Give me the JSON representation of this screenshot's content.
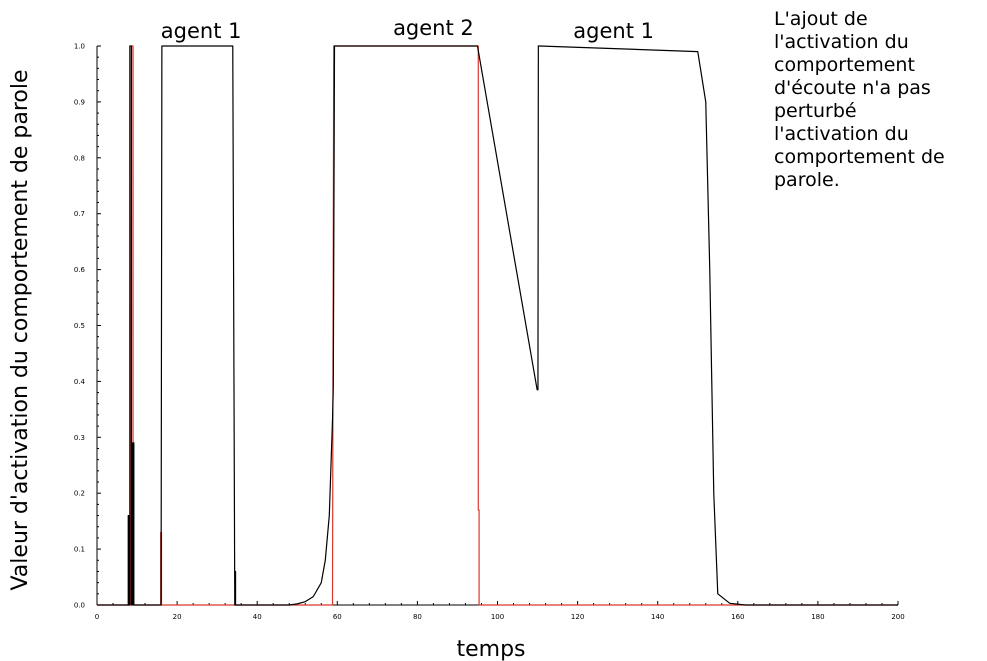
{
  "chart_data": {
    "type": "line",
    "title": "",
    "xlabel": "temps",
    "ylabel": "Valeur d'activation du comportement de parole",
    "xlim": [
      0,
      200
    ],
    "ylim": [
      0,
      1
    ],
    "x_ticks": [
      "0",
      "20",
      "40",
      "60",
      "80",
      "100",
      "120",
      "140",
      "160",
      "180",
      "200"
    ],
    "y_ticks": [
      "0.0",
      "0.1",
      "0.2",
      "0.3",
      "0.4",
      "0.5",
      "0.6",
      "0.7",
      "0.8",
      "0.9",
      "1.0"
    ],
    "grid": false,
    "legend": "none",
    "segment_labels": [
      {
        "text": "agent 1",
        "x": 26
      },
      {
        "text": "agent 2",
        "x": 84
      },
      {
        "text": "agent 1",
        "x": 129
      }
    ],
    "annotation_lines": [
      "L'ajout de",
      "l'activation du",
      "comportement",
      "d'écoute n'a pas",
      "perturbé",
      "l'activation du",
      "comportement de",
      "parole."
    ],
    "series": [
      {
        "color": "#000000",
        "x": [
          0,
          7.8,
          7.8,
          8.0,
          8.0,
          8.2,
          8.2,
          8.6,
          8.6,
          8.9,
          8.9,
          9.2,
          9.2,
          9.4,
          9.4,
          16.0,
          16.2,
          33.9,
          34.4,
          34.4,
          34.6,
          34.6,
          48,
          50,
          52,
          54,
          56,
          57,
          58,
          58.8,
          59.0,
          59.3,
          60,
          95,
          109.9,
          110.1,
          110.2,
          110.5,
          150,
          152,
          153,
          154,
          155,
          158,
          162,
          200
        ],
        "y": [
          0,
          0,
          0.16,
          0.16,
          0,
          0,
          1.0,
          1.0,
          0,
          0,
          0.29,
          0.29,
          0,
          0,
          0,
          0,
          1.0,
          1.0,
          0,
          0.06,
          0.06,
          0,
          0,
          0.002,
          0.006,
          0.015,
          0.04,
          0.08,
          0.16,
          0.33,
          0.39,
          1.0,
          1.0,
          1.0,
          0.385,
          0.385,
          1.0,
          1.0,
          0.99,
          0.9,
          0.6,
          0.2,
          0.02,
          0.003,
          0,
          0
        ]
      },
      {
        "color": "#d9382c",
        "x": [
          0,
          8.4,
          8.6,
          8.6,
          9.0,
          9.0,
          9.1,
          15.9,
          15.9,
          16.1,
          16.1,
          34.2,
          58.8,
          59.1,
          59.1,
          95.2,
          95.2,
          95.4,
          95.4,
          95.6,
          109.9,
          110.1,
          154,
          200
        ],
        "y": [
          0,
          0,
          1.0,
          1.0,
          1.0,
          0.1,
          0,
          0,
          0.13,
          0.13,
          0,
          0,
          0,
          1.0,
          1.0,
          1.0,
          0.17,
          0.17,
          0,
          0,
          0,
          0,
          0,
          0
        ]
      }
    ]
  }
}
